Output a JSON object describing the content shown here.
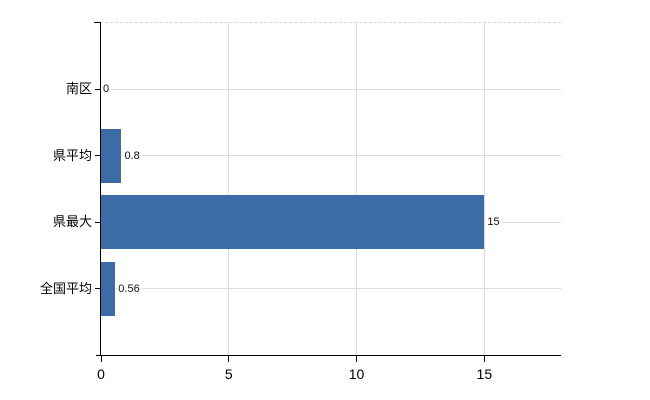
{
  "chart_data": {
    "type": "bar",
    "orientation": "horizontal",
    "title": "",
    "xlabel": "",
    "ylabel": "",
    "categories": [
      "南区",
      "県平均",
      "県最大",
      "全国平均"
    ],
    "values": [
      0,
      0.8,
      15,
      0.56
    ],
    "data_labels": [
      "0",
      "0.8",
      "15",
      "0.56"
    ],
    "x_ticks": [
      "0",
      "5",
      "10",
      "15"
    ],
    "x_tick_values": [
      0,
      5,
      10,
      15
    ],
    "xlim": [
      0,
      18
    ],
    "grid": true,
    "legend": false,
    "bar_color": "#3c6ba6",
    "gridline_color": "#d9d9d9",
    "axis_color": "#000000",
    "text_color": "#000000"
  }
}
